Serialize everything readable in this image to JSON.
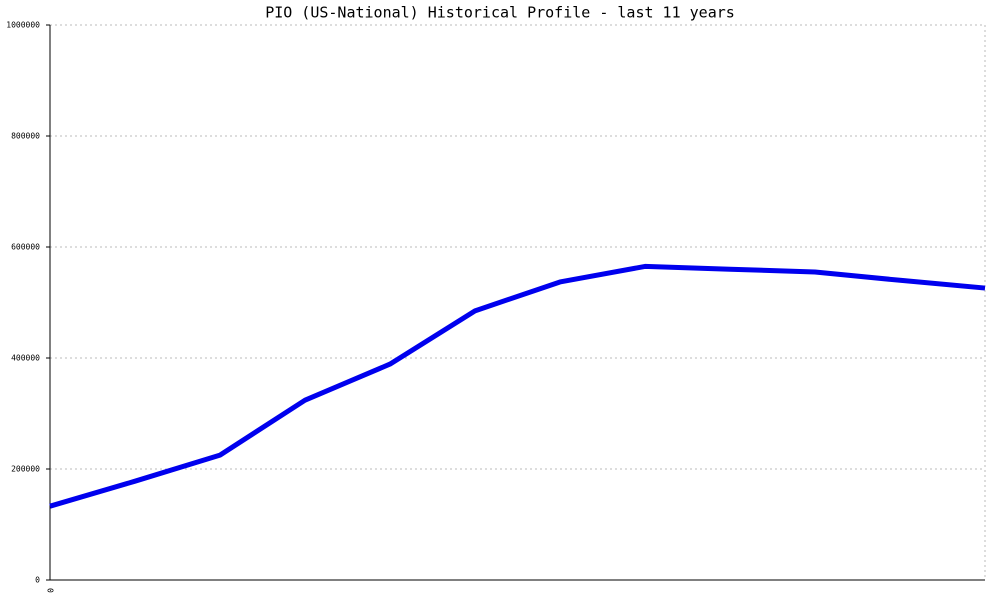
{
  "chart_data": {
    "type": "line",
    "title": "PIO (US-National) Historical Profile - last 11 years",
    "categories": [
      "0",
      null,
      null,
      null,
      null,
      null,
      null,
      null,
      null,
      null,
      null,
      null
    ],
    "series": [
      {
        "color": "#0000ee",
        "values": [
          133000,
          178000,
          225000,
          324000,
          389000,
          485000,
          537000,
          565000,
          560000,
          555000,
          540000,
          526000
        ]
      }
    ],
    "ylim": [
      0,
      1000000
    ],
    "yticks": [
      0,
      200000,
      400000,
      600000,
      800000,
      1000000
    ],
    "grid": true
  }
}
